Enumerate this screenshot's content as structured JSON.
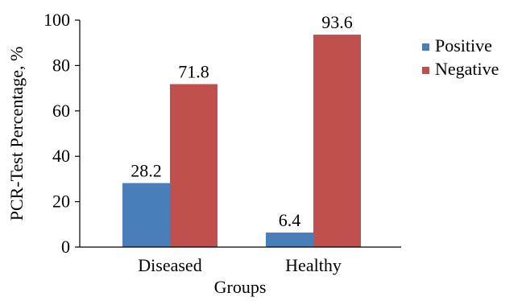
{
  "chart_data": {
    "type": "bar",
    "title": "",
    "xlabel": "Groups",
    "ylabel": "PCR-Test Percentage, %",
    "categories": [
      "Diseased",
      "Healthy"
    ],
    "series": [
      {
        "name": "Positive",
        "values": [
          28.2,
          6.4
        ],
        "labels": [
          "28.2",
          "6.4"
        ],
        "color": "#4a7ebb"
      },
      {
        "name": "Negative",
        "values": [
          71.8,
          93.6
        ],
        "labels": [
          "71.8",
          "93.6"
        ],
        "color": "#c0504d"
      }
    ],
    "ylim": [
      0,
      100
    ],
    "yticks": [
      0,
      20,
      40,
      60,
      80,
      100
    ],
    "ytick_labels": [
      "0",
      "20",
      "40",
      "60",
      "80",
      "100"
    ],
    "grid": false,
    "legend_position": "top-right"
  }
}
